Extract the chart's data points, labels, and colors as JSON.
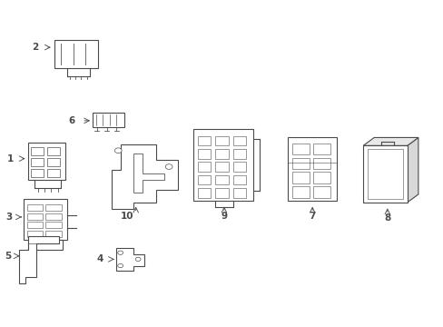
{
  "bg_color": "#ffffff",
  "line_color": "#4a4a4a",
  "line_width": 0.8,
  "label_fontsize": 7.5,
  "fig_width": 4.89,
  "fig_height": 3.6,
  "dpi": 100
}
